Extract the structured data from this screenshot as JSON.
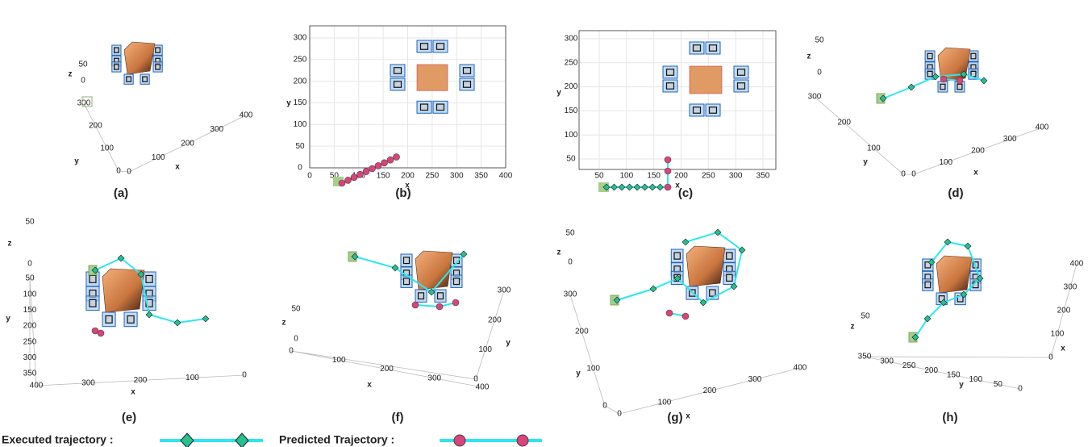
{
  "panels": [
    {
      "label": "(a)",
      "x": {
        "label": "x",
        "ticks": [
          "0",
          "100",
          "200",
          "300",
          "400"
        ]
      },
      "y": {
        "label": "y",
        "ticks": [
          "0",
          "100",
          "200",
          "300"
        ]
      },
      "z": {
        "label": "z",
        "ticks": [
          "0",
          "50"
        ]
      }
    },
    {
      "label": "(b)",
      "x": {
        "label": "x",
        "ticks": [
          "0",
          "50",
          "100",
          "150",
          "200",
          "250",
          "300",
          "350",
          "400"
        ]
      },
      "y": {
        "label": "y",
        "ticks": [
          "0",
          "50",
          "100",
          "150",
          "200",
          "250",
          "300"
        ]
      }
    },
    {
      "label": "(c)",
      "x": {
        "label": "x",
        "ticks": [
          "50",
          "100",
          "150",
          "200",
          "250",
          "300",
          "350"
        ]
      },
      "y": {
        "label": "y",
        "ticks": [
          "50",
          "100",
          "150",
          "200",
          "250",
          "300"
        ]
      }
    },
    {
      "label": "(d)",
      "x": {
        "label": "x",
        "ticks": [
          "0",
          "100",
          "200",
          "300",
          "400"
        ]
      },
      "y": {
        "label": "y",
        "ticks": [
          "0",
          "100",
          "200",
          "300"
        ]
      },
      "z": {
        "label": "z",
        "ticks": [
          "0",
          "50"
        ]
      }
    },
    {
      "label": "(e)",
      "x": {
        "label": "x",
        "ticks": [
          "400",
          "300",
          "200",
          "100",
          "0"
        ]
      },
      "y": {
        "label": "y",
        "ticks": [
          "50",
          "100",
          "150",
          "200",
          "250",
          "300",
          "350"
        ]
      },
      "z": {
        "label": "z",
        "ticks": [
          "50",
          "0"
        ]
      }
    },
    {
      "label": "(f)",
      "x": {
        "label": "x",
        "ticks": [
          "0",
          "100",
          "200",
          "300",
          "400"
        ]
      },
      "y": {
        "label": "y",
        "ticks": [
          "0",
          "100",
          "200",
          "300"
        ]
      },
      "z": {
        "label": "z",
        "ticks": [
          "50",
          "0"
        ]
      }
    },
    {
      "label": "(g)",
      "x": {
        "label": "x",
        "ticks": [
          "0",
          "100",
          "200",
          "300",
          "400"
        ]
      },
      "y": {
        "label": "y",
        "ticks": [
          "0",
          "100",
          "200",
          "300"
        ]
      },
      "z": {
        "label": "z",
        "ticks": [
          "50",
          "0"
        ]
      }
    },
    {
      "label": "(h)",
      "x": {
        "label": "x",
        "ticks": [
          "0",
          "100",
          "200",
          "300",
          "400"
        ]
      },
      "y": {
        "label": "y",
        "ticks": [
          "350",
          "300",
          "250",
          "200",
          "150",
          "100",
          "50",
          "0"
        ]
      },
      "z": {
        "label": "z",
        "ticks": [
          "50"
        ]
      }
    }
  ],
  "legend": {
    "executed": "Executed trajectory :",
    "predicted": "Predicted Trajectory :"
  }
}
